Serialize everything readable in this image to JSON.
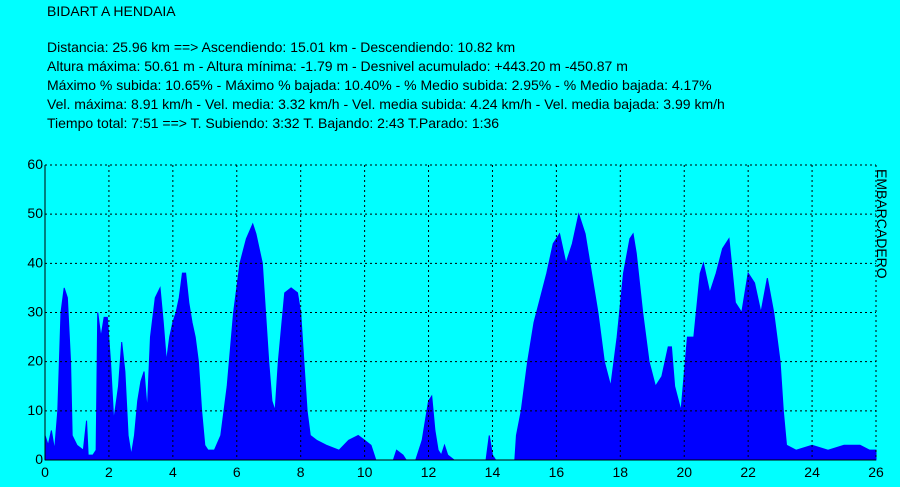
{
  "chart_data": {
    "type": "area",
    "title": "BIDART A HENDAIA",
    "info_lines": [
      "Distancia: 25.96 km    ==>    Ascendiendo: 15.01 km - Descendiendo: 10.82 km",
      "Altura máxima: 50.61 m - Altura mínima: -1.79 m - Desnivel acumulado: +443.20 m  -450.87 m",
      "Máximo % subida: 10.65%  - Máximo % bajada: 10.40%  - % Medio subida: 2.95%  - % Medio bajada: 4.17%",
      "Vel. máxima: 8.91 km/h - Vel. media: 3.32 km/h - Vel. media subida: 4.24 km/h - Vel. media bajada: 3.99 km/h",
      "Tiempo total: 7:51    ==>    T. Subiendo: 3:32  T. Bajando: 2:43  T.Parado: 1:36"
    ],
    "annotation": "EMBARCADERO",
    "background": "#00ffff",
    "color": "#0000ff",
    "grid": true,
    "xlim": [
      0,
      26
    ],
    "xticks": [
      0,
      2,
      4,
      6,
      8,
      10,
      12,
      14,
      16,
      18,
      20,
      22,
      24,
      26
    ],
    "ylim": [
      0,
      60
    ],
    "yticks": [
      0,
      10,
      20,
      30,
      40,
      50,
      60
    ],
    "x": [
      0,
      0.1,
      0.2,
      0.3,
      0.4,
      0.5,
      0.6,
      0.7,
      0.8,
      0.85,
      1.0,
      1.2,
      1.3,
      1.35,
      1.5,
      1.6,
      1.65,
      1.75,
      1.85,
      1.95,
      2.05,
      2.15,
      2.3,
      2.4,
      2.5,
      2.6,
      2.7,
      2.8,
      2.9,
      3.0,
      3.1,
      3.2,
      3.3,
      3.45,
      3.6,
      3.7,
      3.8,
      3.9,
      4.0,
      4.1,
      4.2,
      4.3,
      4.4,
      4.5,
      4.6,
      4.7,
      4.8,
      4.9,
      5.0,
      5.1,
      5.3,
      5.5,
      5.7,
      5.9,
      6.1,
      6.3,
      6.5,
      6.6,
      6.8,
      6.9,
      7.0,
      7.1,
      7.2,
      7.3,
      7.5,
      7.7,
      7.9,
      8.0,
      8.1,
      8.2,
      8.3,
      8.5,
      8.8,
      9.2,
      9.5,
      9.8,
      10.0,
      10.2,
      10.3,
      10.35,
      10.9,
      11.0,
      11.2,
      11.3,
      11.6,
      11.8,
      11.9,
      12.0,
      12.1,
      12.2,
      12.3,
      12.4,
      12.5,
      12.6,
      12.8,
      13.8,
      13.9,
      14.0,
      14.1,
      14.7,
      14.75,
      14.9,
      15.1,
      15.3,
      15.5,
      15.7,
      15.9,
      16.1,
      16.3,
      16.5,
      16.7,
      16.9,
      17.1,
      17.3,
      17.5,
      17.7,
      17.9,
      18.1,
      18.3,
      18.4,
      18.5,
      18.7,
      18.9,
      19.1,
      19.3,
      19.5,
      19.6,
      19.7,
      19.9,
      20.1,
      20.3,
      20.5,
      20.6,
      20.8,
      21.0,
      21.2,
      21.4,
      21.6,
      21.8,
      22.0,
      22.2,
      22.4,
      22.6,
      22.8,
      23.0,
      23.1,
      23.2,
      23.5,
      24.0,
      24.5,
      25.0,
      25.5,
      25.8,
      26.0
    ],
    "values": [
      5,
      3,
      6,
      2,
      10,
      30,
      35,
      33,
      20,
      5,
      3,
      2,
      8,
      1,
      1,
      2,
      30,
      25,
      29,
      29,
      20,
      8,
      15,
      24,
      18,
      5,
      1,
      5,
      12,
      16,
      18,
      10,
      25,
      33,
      35,
      28,
      20,
      25,
      28,
      30,
      33,
      38,
      38,
      32,
      28,
      25,
      20,
      10,
      3,
      2,
      2,
      5,
      15,
      30,
      40,
      45,
      48,
      46,
      40,
      30,
      20,
      12,
      10,
      20,
      34,
      35,
      34,
      30,
      20,
      10,
      5,
      4,
      3,
      2,
      4,
      5,
      4,
      3,
      1,
      0,
      0,
      2,
      1,
      0,
      0,
      4,
      8,
      12,
      13,
      6,
      2,
      1,
      3,
      1,
      0,
      0,
      5,
      1,
      0,
      0,
      5,
      10,
      20,
      28,
      33,
      38,
      44,
      46,
      40,
      44,
      50,
      46,
      38,
      30,
      20,
      15,
      25,
      38,
      45,
      46,
      42,
      30,
      20,
      15,
      17,
      23,
      23,
      15,
      10,
      25,
      25,
      38,
      40,
      34,
      38,
      43,
      45,
      32,
      30,
      38,
      36,
      30,
      37,
      30,
      20,
      10,
      3,
      2,
      3,
      2,
      3,
      3,
      2,
      2
    ]
  }
}
